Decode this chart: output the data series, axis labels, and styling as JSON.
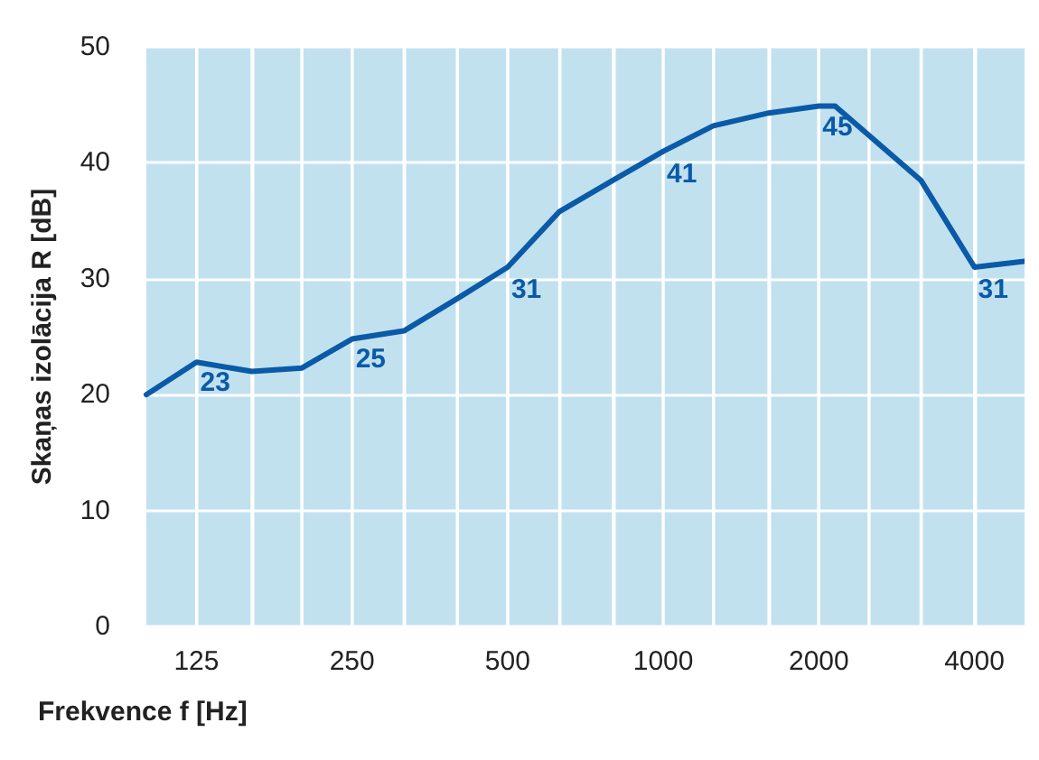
{
  "chart_data": {
    "type": "line",
    "xlabel": "Frekvence f [Hz]",
    "ylabel": "Skaņas izolācija R [dB]",
    "x": [
      100,
      125,
      160,
      200,
      250,
      315,
      400,
      500,
      630,
      800,
      1000,
      1250,
      1600,
      2000,
      2150,
      3150,
      4000,
      5000
    ],
    "series": [
      {
        "color": "#0a5aa8",
        "values": [
          20,
          22.8,
          22,
          22.3,
          24.8,
          25.5,
          28.3,
          31,
          35.8,
          38.5,
          41,
          43.2,
          44.3,
          44.9,
          44.9,
          38.5,
          31,
          31.5
        ]
      }
    ],
    "xlim": [
      100,
      5000
    ],
    "ylim": [
      0,
      50
    ],
    "xticks": [
      {
        "value": 125,
        "label": "125"
      },
      {
        "value": 160,
        "label": null
      },
      {
        "value": 200,
        "label": null
      },
      {
        "value": 250,
        "label": "250"
      },
      {
        "value": 315,
        "label": null
      },
      {
        "value": 400,
        "label": null
      },
      {
        "value": 500,
        "label": "500"
      },
      {
        "value": 630,
        "label": null
      },
      {
        "value": 800,
        "label": null
      },
      {
        "value": 1000,
        "label": "1000"
      },
      {
        "value": 1250,
        "label": null
      },
      {
        "value": 1600,
        "label": null
      },
      {
        "value": 2000,
        "label": "2000"
      },
      {
        "value": 2500,
        "label": null
      },
      {
        "value": 3150,
        "label": null
      },
      {
        "value": 4000,
        "label": "4000"
      }
    ],
    "yticks": [
      0,
      10,
      20,
      30,
      40,
      50
    ],
    "grid": true,
    "log": "x",
    "marker": "none",
    "line_style": "solid",
    "annotations": [
      {
        "text": "23",
        "x": 125,
        "y": 23
      },
      {
        "text": "25",
        "x": 250,
        "y": 25
      },
      {
        "text": "31",
        "x": 500,
        "y": 31
      },
      {
        "text": "41",
        "x": 1000,
        "y": 41
      },
      {
        "text": "45",
        "x": 2000,
        "y": 45
      },
      {
        "text": "31",
        "x": 4000,
        "y": 31
      }
    ]
  }
}
